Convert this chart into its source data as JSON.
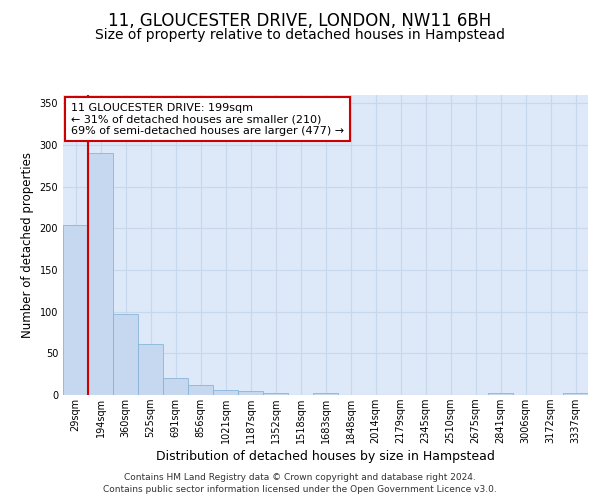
{
  "title": "11, GLOUCESTER DRIVE, LONDON, NW11 6BH",
  "subtitle": "Size of property relative to detached houses in Hampstead",
  "xlabel": "Distribution of detached houses by size in Hampstead",
  "ylabel": "Number of detached properties",
  "bar_values": [
    204,
    291,
    97,
    61,
    20,
    12,
    6,
    5,
    2,
    0,
    3,
    0,
    0,
    0,
    0,
    0,
    0,
    3,
    0,
    0,
    3
  ],
  "bar_labels": [
    "29sqm",
    "194sqm",
    "360sqm",
    "525sqm",
    "691sqm",
    "856sqm",
    "1021sqm",
    "1187sqm",
    "1352sqm",
    "1518sqm",
    "1683sqm",
    "1848sqm",
    "2014sqm",
    "2179sqm",
    "2345sqm",
    "2510sqm",
    "2675sqm",
    "2841sqm",
    "3006sqm",
    "3172sqm",
    "3337sqm"
  ],
  "bar_color": "#c5d8f0",
  "bar_edge_color": "#7eadd4",
  "grid_color": "#c8d8ec",
  "background_color": "#dde8f8",
  "vline_x": 0.5,
  "vline_color": "#cc0000",
  "annotation_line1": "11 GLOUCESTER DRIVE: 199sqm",
  "annotation_line2": "← 31% of detached houses are smaller (210)",
  "annotation_line3": "69% of semi-detached houses are larger (477) →",
  "annotation_box_facecolor": "#ffffff",
  "annotation_box_edgecolor": "#cc0000",
  "ylim": [
    0,
    360
  ],
  "yticks": [
    0,
    50,
    100,
    150,
    200,
    250,
    300,
    350
  ],
  "footer": "Contains HM Land Registry data © Crown copyright and database right 2024.\nContains public sector information licensed under the Open Government Licence v3.0.",
  "title_fontsize": 12,
  "subtitle_fontsize": 10,
  "ylabel_fontsize": 8.5,
  "xlabel_fontsize": 9,
  "tick_fontsize": 7,
  "annotation_fontsize": 8,
  "footer_fontsize": 6.5
}
